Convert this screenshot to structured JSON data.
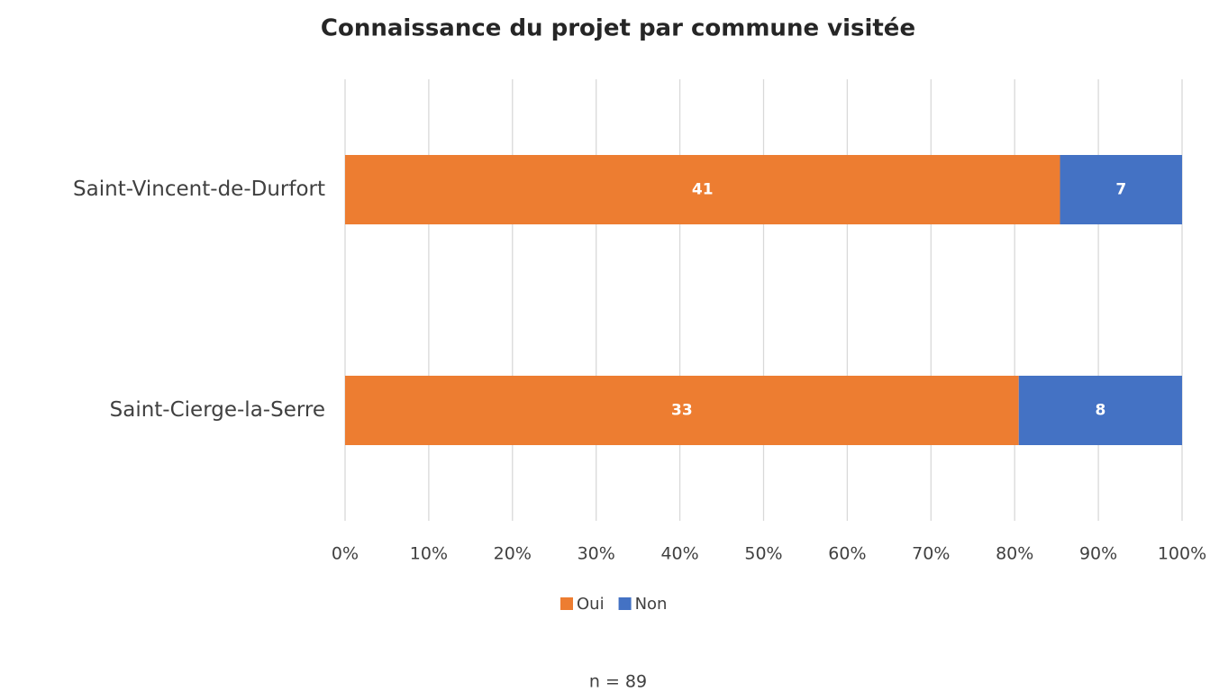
{
  "chart_data": {
    "type": "bar",
    "orientation": "horizontal",
    "stacking": "percent",
    "title": "Connaissance du projet par commune visitée",
    "categories": [
      "Saint-Vincent-de-Durfort",
      "Saint-Cierge-la-Serre"
    ],
    "series": [
      {
        "name": "Oui",
        "color": "#ed7d31",
        "values": [
          41,
          33
        ]
      },
      {
        "name": "Non",
        "color": "#4472c4",
        "values": [
          7,
          8
        ]
      }
    ],
    "xlim": [
      0,
      100
    ],
    "xticks": [
      {
        "value": 0,
        "label": "0%"
      },
      {
        "value": 10,
        "label": "10%"
      },
      {
        "value": 20,
        "label": "20%"
      },
      {
        "value": 30,
        "label": "30%"
      },
      {
        "value": 40,
        "label": "40%"
      },
      {
        "value": 50,
        "label": "50%"
      },
      {
        "value": 60,
        "label": "60%"
      },
      {
        "value": 70,
        "label": "70%"
      },
      {
        "value": 80,
        "label": "80%"
      },
      {
        "value": 90,
        "label": "90%"
      },
      {
        "value": 100,
        "label": "100%"
      }
    ],
    "grid": true,
    "legend": "bottom",
    "note": "n = 89"
  }
}
